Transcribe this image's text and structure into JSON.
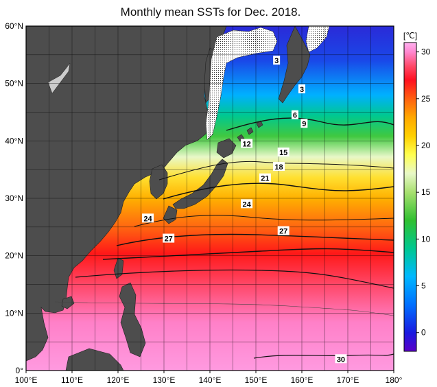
{
  "title": "Monthly mean SSTs for Dec. 2018.",
  "map": {
    "lon_labels": [
      "100°E",
      "110°E",
      "120°E",
      "130°E",
      "140°E",
      "150°E",
      "160°E",
      "170°E",
      "180°"
    ],
    "lat_labels": [
      "60°N",
      "50°N",
      "40°N",
      "30°N",
      "20°N",
      "10°N",
      "0°"
    ],
    "lon_range": [
      100,
      180
    ],
    "lat_range": [
      0,
      60
    ],
    "grid_step_deg": 5,
    "land_color": "#4d4d4d",
    "sea_ice_pattern": "dotted",
    "contour_labels": [
      {
        "text": "3",
        "lon": 154.5,
        "lat": 54
      },
      {
        "text": "3",
        "lon": 160,
        "lat": 49
      },
      {
        "text": "6",
        "lon": 158.5,
        "lat": 44.5
      },
      {
        "text": "9",
        "lon": 160.5,
        "lat": 43
      },
      {
        "text": "12",
        "lon": 148,
        "lat": 39.5
      },
      {
        "text": "15",
        "lon": 156,
        "lat": 38
      },
      {
        "text": "18",
        "lon": 155,
        "lat": 35.5
      },
      {
        "text": "21",
        "lon": 152,
        "lat": 33.5
      },
      {
        "text": "24",
        "lon": 126.5,
        "lat": 26.5
      },
      {
        "text": "24",
        "lon": 148,
        "lat": 29
      },
      {
        "text": "27",
        "lon": 131,
        "lat": 23
      },
      {
        "text": "27",
        "lon": 156,
        "lat": 24.3
      },
      {
        "text": "30",
        "lon": 168.5,
        "lat": 2
      }
    ]
  },
  "colorbar": {
    "unit": "[℃]",
    "ticks": [
      "30",
      "25",
      "20",
      "15",
      "10",
      "5",
      "0"
    ],
    "tick_values": [
      30,
      25,
      20,
      15,
      10,
      5,
      0
    ],
    "range": [
      -2,
      31
    ],
    "stops": [
      {
        "t": -2,
        "color": "#5a00c8"
      },
      {
        "t": 0,
        "color": "#1a1ae0"
      },
      {
        "t": 3,
        "color": "#0070ff"
      },
      {
        "t": 6,
        "color": "#00b8ff"
      },
      {
        "t": 9,
        "color": "#00c890"
      },
      {
        "t": 12,
        "color": "#30c030"
      },
      {
        "t": 15,
        "color": "#a8e070"
      },
      {
        "t": 17,
        "color": "#e8f8c8"
      },
      {
        "t": 19,
        "color": "#ffff50"
      },
      {
        "t": 21,
        "color": "#ffd000"
      },
      {
        "t": 23,
        "color": "#ffa800"
      },
      {
        "t": 25,
        "color": "#ff6010"
      },
      {
        "t": 27,
        "color": "#ff1020"
      },
      {
        "t": 28.5,
        "color": "#ff4a6a"
      },
      {
        "t": 30,
        "color": "#ff88d0"
      },
      {
        "t": 31,
        "color": "#ffb0f0"
      }
    ]
  }
}
